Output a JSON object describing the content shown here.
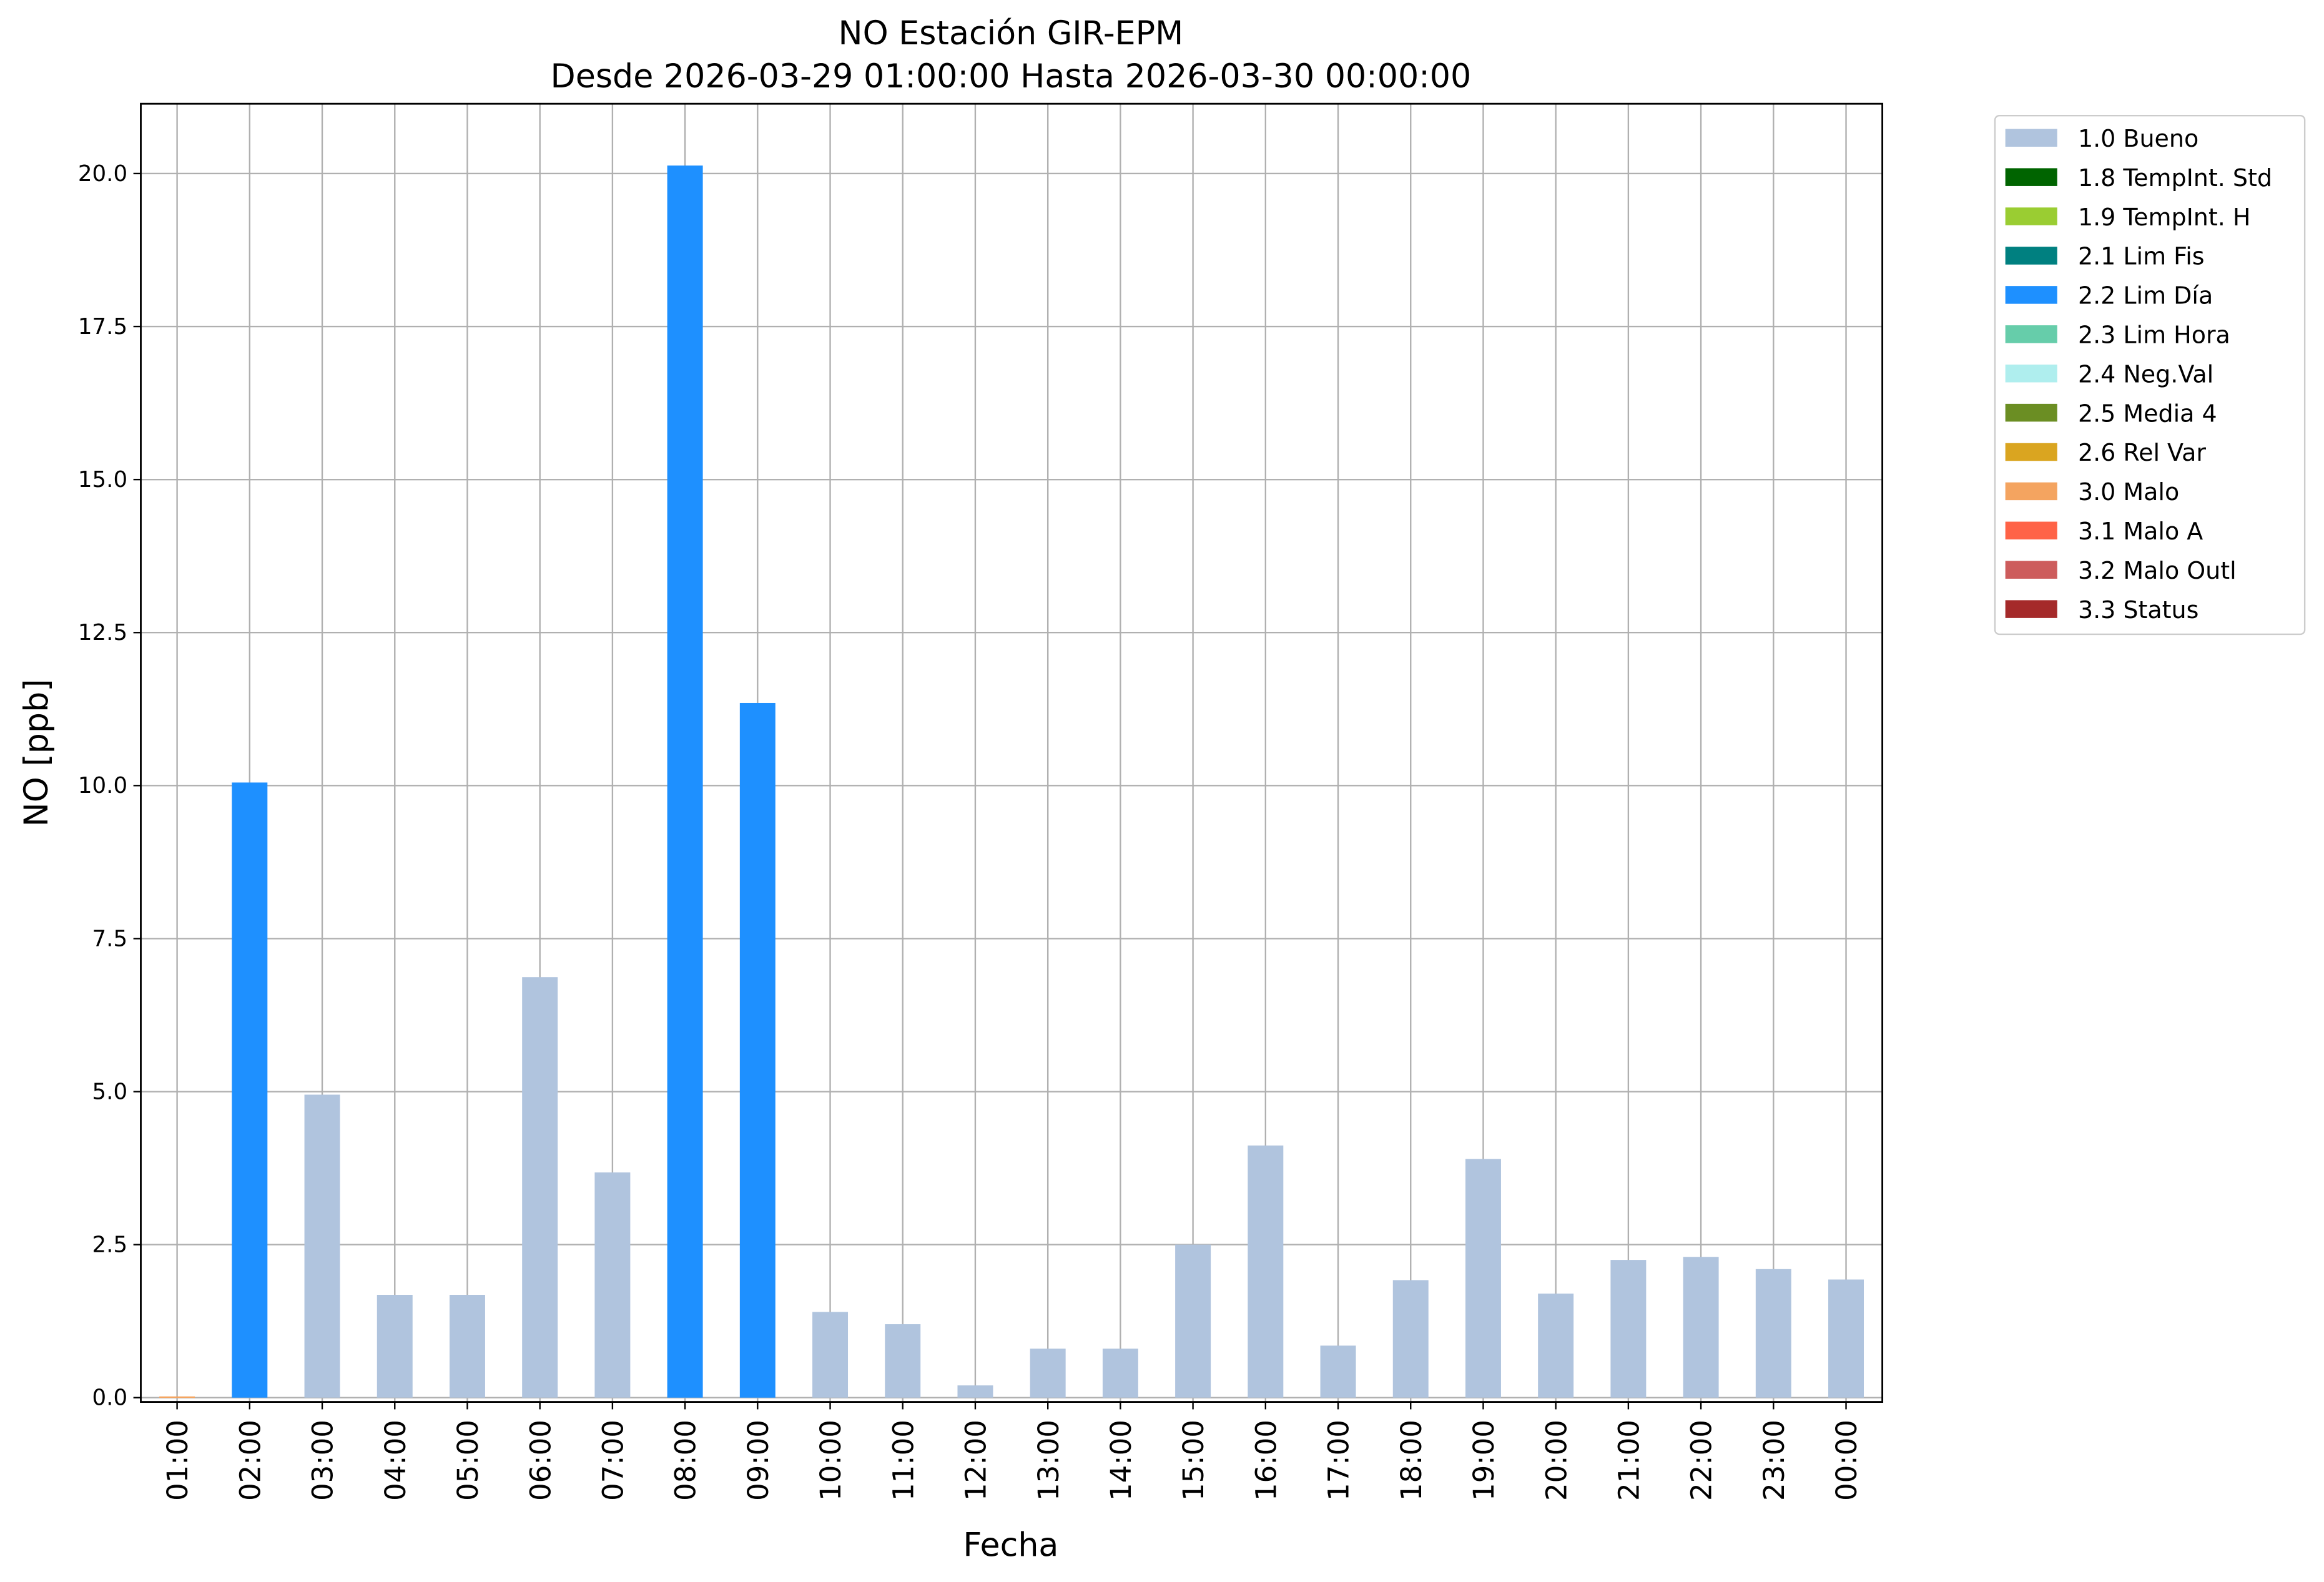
{
  "chart_data": {
    "type": "stacked_bar",
    "title": "NO Estación GIR-EPM",
    "subtitle": "Desde 2026-03-29 01:00:00 Hasta 2026-03-30 00:00:00",
    "x_label": "Fecha",
    "y_label": "NO [ppb]",
    "categories": [
      "01:00",
      "02:00",
      "03:00",
      "04:00",
      "05:00",
      "06:00",
      "07:00",
      "08:00",
      "09:00",
      "10:00",
      "11:00",
      "12:00",
      "13:00",
      "14:00",
      "15:00",
      "16:00",
      "17:00",
      "18:00",
      "19:00",
      "20:00",
      "21:00",
      "22:00",
      "23:00",
      "00:00"
    ],
    "series": [
      {
        "name": "1.0 Bueno",
        "color": "#b0c4de",
        "values": [
          null,
          null,
          4.95,
          1.68,
          1.68,
          6.87,
          3.68,
          null,
          null,
          1.4,
          1.2,
          0.2,
          0.8,
          0.8,
          2.5,
          4.12,
          0.85,
          1.92,
          3.9,
          1.7,
          2.25,
          2.3,
          2.1,
          1.93
        ]
      },
      {
        "name": "1.8 TempInt. Std",
        "color": "#006400",
        "values": [
          null,
          null,
          null,
          null,
          null,
          null,
          null,
          null,
          null,
          null,
          null,
          null,
          null,
          null,
          null,
          null,
          null,
          null,
          null,
          null,
          null,
          null,
          null,
          null
        ]
      },
      {
        "name": "1.9 TempInt. H",
        "color": "#9acd32",
        "values": [
          null,
          null,
          null,
          null,
          null,
          null,
          null,
          null,
          null,
          null,
          null,
          null,
          null,
          null,
          null,
          null,
          null,
          null,
          null,
          null,
          null,
          null,
          null,
          null
        ]
      },
      {
        "name": "2.1 Lim Fis",
        "color": "#008080",
        "values": [
          null,
          null,
          null,
          null,
          null,
          null,
          null,
          null,
          null,
          null,
          null,
          null,
          null,
          null,
          null,
          null,
          null,
          null,
          null,
          null,
          null,
          null,
          null,
          null
        ]
      },
      {
        "name": "2.2 Lim Día",
        "color": "#1e90ff",
        "values": [
          null,
          10.05,
          null,
          null,
          null,
          null,
          null,
          20.13,
          11.35,
          null,
          null,
          null,
          null,
          null,
          null,
          null,
          null,
          null,
          null,
          null,
          null,
          null,
          null,
          null
        ]
      },
      {
        "name": "2.3 Lim Hora",
        "color": "#66cdaa",
        "values": [
          null,
          null,
          null,
          null,
          null,
          null,
          null,
          null,
          null,
          null,
          null,
          null,
          null,
          null,
          null,
          null,
          null,
          null,
          null,
          null,
          null,
          null,
          null,
          null
        ]
      },
      {
        "name": "2.4 Neg.Val",
        "color": "#afeeee",
        "values": [
          null,
          null,
          null,
          null,
          null,
          null,
          null,
          null,
          null,
          null,
          null,
          null,
          null,
          null,
          null,
          null,
          null,
          null,
          null,
          null,
          null,
          null,
          null,
          null
        ]
      },
      {
        "name": "2.5 Media 4",
        "color": "#6b8e23",
        "values": [
          null,
          null,
          null,
          null,
          null,
          null,
          null,
          null,
          null,
          null,
          null,
          null,
          null,
          null,
          null,
          null,
          null,
          null,
          null,
          null,
          null,
          null,
          null,
          null
        ]
      },
      {
        "name": "2.6 Rel Var",
        "color": "#daa520",
        "values": [
          null,
          null,
          null,
          null,
          null,
          null,
          null,
          null,
          null,
          null,
          null,
          null,
          null,
          null,
          null,
          null,
          null,
          null,
          null,
          null,
          null,
          null,
          null,
          null
        ]
      },
      {
        "name": "3.0 Malo",
        "color": "#f4a460",
        "values": [
          0.02,
          null,
          null,
          null,
          null,
          null,
          null,
          null,
          null,
          null,
          null,
          null,
          null,
          null,
          null,
          null,
          null,
          null,
          null,
          null,
          null,
          null,
          null,
          null
        ]
      },
      {
        "name": "3.1 Malo A",
        "color": "#ff6347",
        "values": [
          null,
          null,
          null,
          null,
          null,
          null,
          null,
          null,
          null,
          null,
          null,
          null,
          null,
          null,
          null,
          null,
          null,
          null,
          null,
          null,
          null,
          null,
          null,
          null
        ]
      },
      {
        "name": "3.2 Malo Outl",
        "color": "#cd5c5c",
        "values": [
          null,
          null,
          null,
          null,
          null,
          null,
          null,
          null,
          null,
          null,
          null,
          null,
          null,
          null,
          null,
          null,
          null,
          null,
          null,
          null,
          null,
          null,
          null,
          null
        ]
      },
      {
        "name": "3.3 Status",
        "color": "#a52a2a",
        "values": [
          null,
          null,
          null,
          null,
          null,
          null,
          null,
          null,
          null,
          null,
          null,
          null,
          null,
          null,
          null,
          null,
          null,
          null,
          null,
          null,
          null,
          null,
          null,
          null
        ]
      }
    ],
    "ylim": [
      -0.07,
      21.14
    ],
    "yticks": [
      {
        "value": 0,
        "label": "0.0"
      },
      2.5,
      {
        "value": 5,
        "label": "5.0"
      },
      7.5,
      {
        "value": 10,
        "label": "10.0"
      },
      12.5,
      {
        "value": 15,
        "label": "15.0"
      },
      17.5,
      {
        "value": 20,
        "label": "20.0"
      }
    ],
    "grid": true,
    "legend": "outside-right"
  }
}
